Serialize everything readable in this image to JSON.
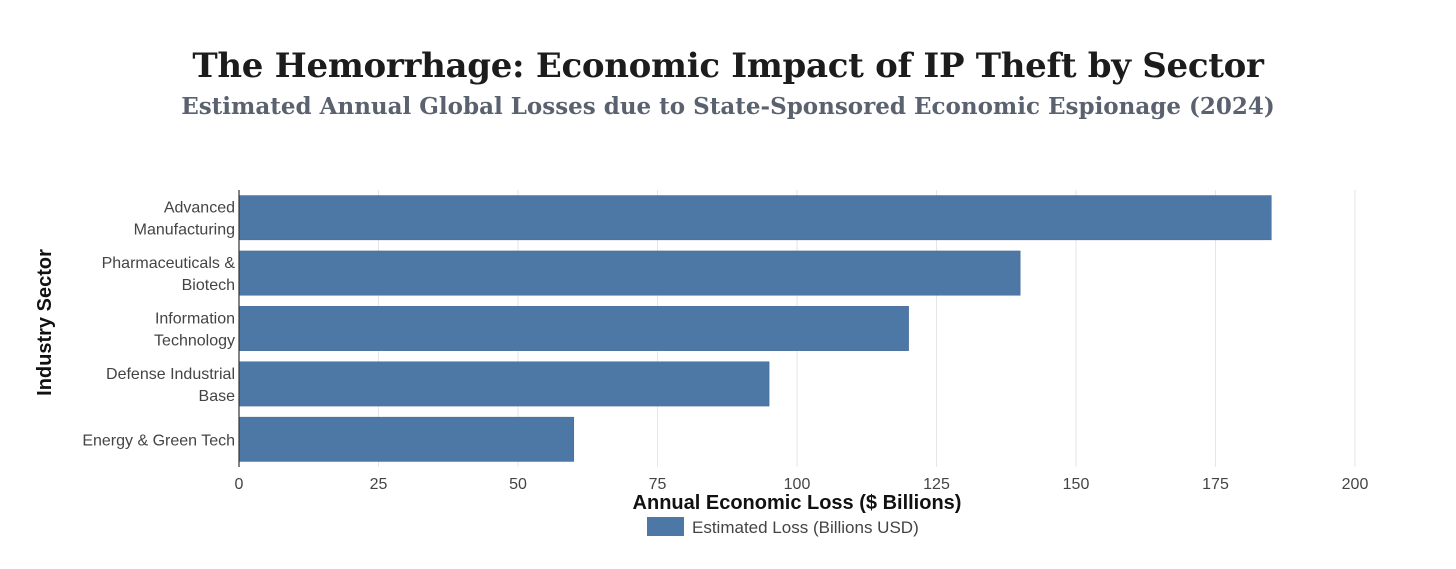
{
  "chart_data": {
    "type": "bar",
    "orientation": "horizontal",
    "title": "The Hemorrhage: Economic Impact of IP Theft by Sector",
    "subtitle": "Estimated Annual Global Losses due to State-Sponsored Economic Espionage (2024)",
    "categories": [
      [
        "Advanced",
        "Manufacturing"
      ],
      [
        "Pharmaceuticals &",
        "Biotech"
      ],
      [
        "Information",
        "Technology"
      ],
      [
        "Defense Industrial",
        "Base"
      ],
      [
        "Energy & Green Tech"
      ]
    ],
    "series": [
      {
        "name": "Estimated Loss (Billions USD)",
        "values": [
          185,
          140,
          120,
          95,
          60
        ]
      }
    ],
    "xlabel": "Annual Economic Loss ($ Billions)",
    "ylabel": "Industry Sector",
    "xlim": [
      0,
      200
    ],
    "xticks": [
      0,
      25,
      50,
      75,
      100,
      125,
      150,
      175,
      200
    ],
    "grid": true,
    "legend_position": "bottom-center",
    "colors": {
      "bar": "#4d78a6",
      "grid": "#e6e6e6",
      "axis": "#333333"
    }
  }
}
